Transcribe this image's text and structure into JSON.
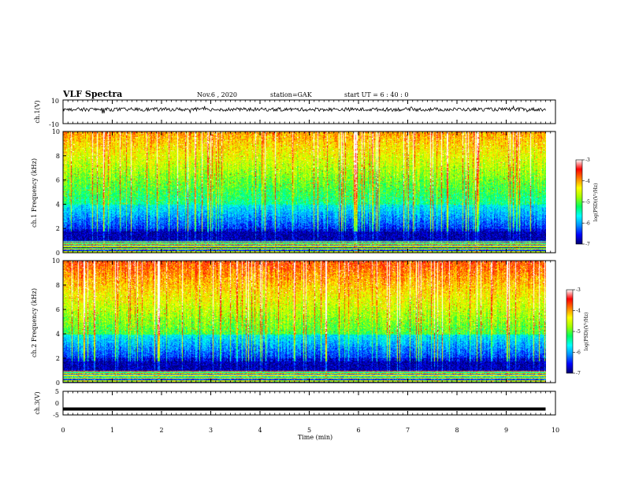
{
  "header": {
    "title": "VLF Spectra",
    "date": "Nov.6 , 2020",
    "station": "station=GAK",
    "start": "start UT =  6 : 40 : 0"
  },
  "colors": {
    "scale": [
      "#00006e",
      "#0000ff",
      "#0090ff",
      "#00ffff",
      "#00ff60",
      "#a0ff00",
      "#ffff00",
      "#ff8000",
      "#ff0000",
      "#ffffff"
    ]
  },
  "chart_data": [
    {
      "type": "line",
      "panel": "ch1-waveform",
      "ylabel": "ch.1(V)",
      "ylim": [
        -10,
        10
      ],
      "y_ticks": [
        "10",
        "-10"
      ],
      "xlim": [
        0,
        10
      ],
      "baseline": 2,
      "noise_amplitude": 1.5
    },
    {
      "type": "heatmap",
      "panel": "ch1-spectrogram",
      "ylabel": "ch.1 Frequency (kHz)",
      "ylim": [
        0,
        10
      ],
      "y_ticks": [
        "0",
        "2",
        "4",
        "6",
        "8",
        "10"
      ],
      "xlim": [
        0,
        10
      ],
      "colorbar": {
        "label": "log(PSD)(V²/Hz)",
        "ticks": [
          "-3",
          "-4",
          "-5",
          "-6",
          "-7"
        ],
        "range": [
          -7,
          -3
        ]
      }
    },
    {
      "type": "heatmap",
      "panel": "ch2-spectrogram",
      "ylabel": "ch.2 Frequency (kHz)",
      "ylim": [
        0,
        10
      ],
      "y_ticks": [
        "0",
        "2",
        "4",
        "6",
        "8",
        "10"
      ],
      "xlim": [
        0,
        10
      ],
      "colorbar": {
        "label": "log(PSD)(V²/Hz)",
        "ticks": [
          "-3",
          "-4",
          "-5",
          "-6",
          "-7"
        ],
        "range": [
          -7,
          -3
        ]
      }
    },
    {
      "type": "line",
      "panel": "ch3-waveform",
      "ylabel": "ch.3(V)",
      "ylim": [
        -5,
        5
      ],
      "y_ticks": [
        "5",
        "0",
        "-5"
      ],
      "xlim": [
        0,
        10
      ],
      "value": -2.5
    }
  ],
  "xaxis": {
    "label": "Time (min)",
    "ticks": [
      "0",
      "1",
      "2",
      "3",
      "4",
      "5",
      "6",
      "7",
      "8",
      "9",
      "10"
    ]
  }
}
